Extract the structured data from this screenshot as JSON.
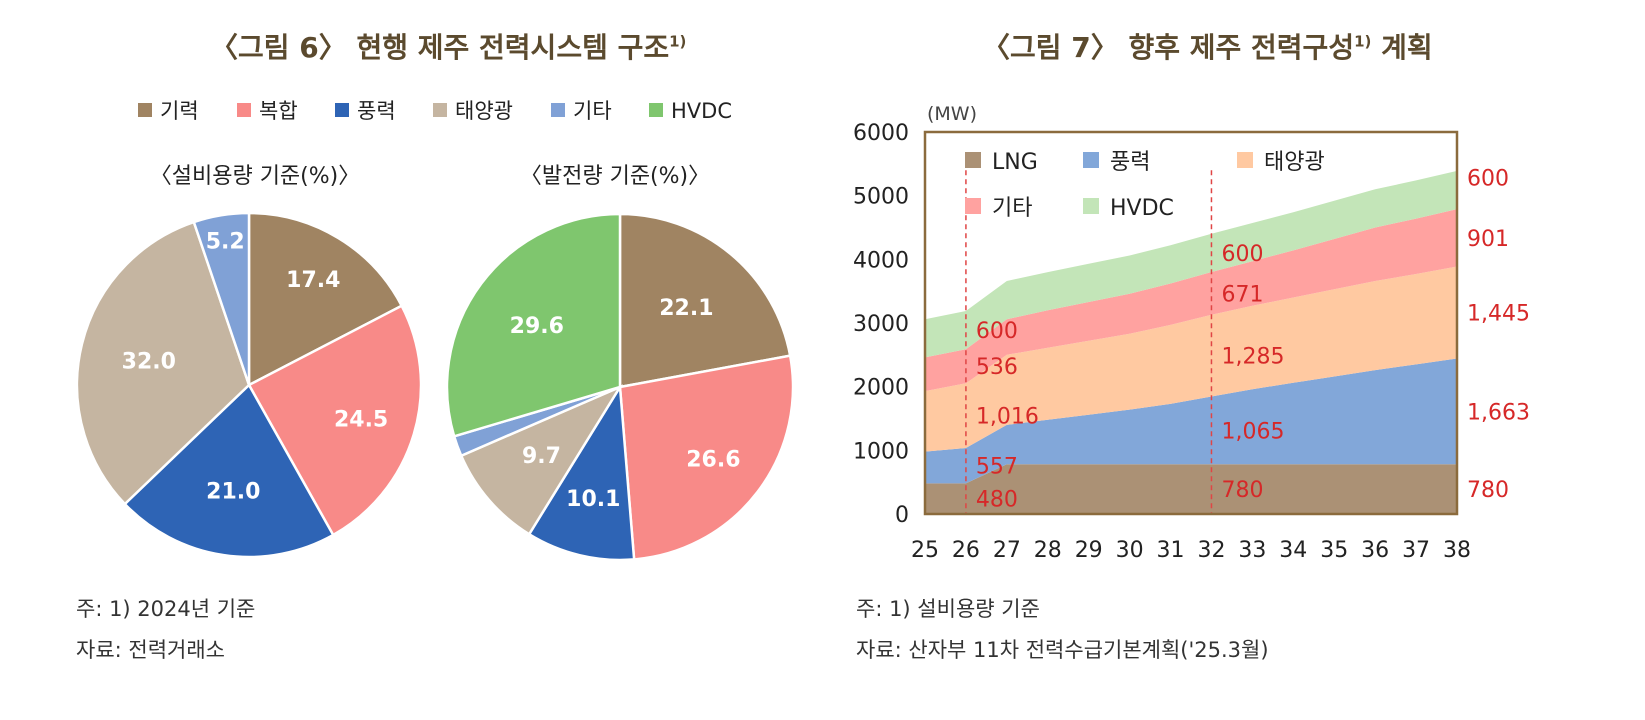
{
  "colors": {
    "gihwa": "#a08462",
    "bokhap": "#f88a88",
    "pungryeok": "#2e64b5",
    "taeyang": "#c5b5a1",
    "gita": "#80a1d6",
    "hvdc": "#7fc66e",
    "area_lng": "#ab9175",
    "area_wind": "#82a7d9",
    "area_solar": "#ffc9a1",
    "area_other": "#ffa2a0",
    "area_hvdc": "#c3e5b8",
    "frame": "#8b6b3d",
    "label_red": "#d62828",
    "title_brown": "#5b4a2e"
  },
  "left": {
    "title": "〈그림 6〉 현행 제주 전력시스템 구조",
    "title_sup": "1)",
    "legend": [
      {
        "label": "기력",
        "color": "#a08462"
      },
      {
        "label": "복합",
        "color": "#f88a88"
      },
      {
        "label": "풍력",
        "color": "#2e64b5"
      },
      {
        "label": "태양광",
        "color": "#c5b5a1"
      },
      {
        "label": "기타",
        "color": "#80a1d6"
      },
      {
        "label": "HVDC",
        "color": "#7fc66e"
      }
    ],
    "note1": "주: 1) 2024년 기준",
    "note2": "자료: 전력거래소"
  },
  "right": {
    "title": "〈그림 7〉 향후 제주 전력구성",
    "title_sup": "1)",
    "title_suffix": " 계획",
    "note1": "주: 1) 설비용량 기준",
    "note2": "자료: 산자부 11차 전력수급기본계획('25.3월)"
  },
  "chart_data": [
    {
      "type": "pie",
      "title": "〈설비용량 기준(%)〉",
      "slices": [
        {
          "label": "기력",
          "value": 17.4,
          "display": "17.4",
          "color": "#a08462"
        },
        {
          "label": "복합",
          "value": 24.5,
          "display": "24.5",
          "color": "#f88a88"
        },
        {
          "label": "풍력",
          "value": 21.0,
          "display": "21.0",
          "color": "#2e64b5"
        },
        {
          "label": "태양광",
          "value": 32.0,
          "display": "32.0",
          "color": "#c5b5a1"
        },
        {
          "label": "기타",
          "value": 5.2,
          "display": "5.2",
          "color": "#80a1d6"
        }
      ]
    },
    {
      "type": "pie",
      "title": "〈발전량 기준(%)〉",
      "slices": [
        {
          "label": "기력",
          "value": 22.1,
          "display": "22.1",
          "color": "#a08462"
        },
        {
          "label": "복합",
          "value": 26.6,
          "display": "26.6",
          "color": "#f88a88"
        },
        {
          "label": "풍력",
          "value": 10.1,
          "display": "10.1",
          "color": "#2e64b5"
        },
        {
          "label": "태양광",
          "value": 9.7,
          "display": "9.7",
          "color": "#c5b5a1"
        },
        {
          "label": "기타",
          "value": 1.9,
          "display": "",
          "color": "#80a1d6"
        },
        {
          "label": "HVDC",
          "value": 29.6,
          "display": "29.6",
          "color": "#7fc66e"
        }
      ]
    },
    {
      "type": "area",
      "stacked": true,
      "unit": "(MW)",
      "x": [
        25,
        26,
        27,
        28,
        29,
        30,
        31,
        32,
        33,
        34,
        35,
        36,
        37,
        38
      ],
      "xlim": [
        25,
        38
      ],
      "ylim": [
        0,
        6000
      ],
      "yticks": [
        0,
        1000,
        2000,
        3000,
        4000,
        5000,
        6000
      ],
      "series": [
        {
          "name": "LNG",
          "color": "#ab9175",
          "values": [
            480,
            480,
            780,
            780,
            780,
            780,
            780,
            780,
            780,
            780,
            780,
            780,
            780,
            780
          ]
        },
        {
          "name": "풍력",
          "color": "#82a7d9",
          "values": [
            500,
            557,
            620,
            700,
            780,
            860,
            950,
            1065,
            1180,
            1280,
            1380,
            1480,
            1570,
            1663
          ]
        },
        {
          "name": "태양광",
          "color": "#ffc9a1",
          "values": [
            950,
            1016,
            1100,
            1130,
            1160,
            1190,
            1240,
            1285,
            1310,
            1340,
            1370,
            1400,
            1420,
            1445
          ]
        },
        {
          "name": "기타",
          "color": "#ffa2a0",
          "values": [
            530,
            536,
            560,
            590,
            610,
            630,
            650,
            671,
            700,
            740,
            790,
            840,
            870,
            901
          ]
        },
        {
          "name": "HVDC",
          "color": "#c3e5b8",
          "values": [
            600,
            600,
            600,
            600,
            600,
            600,
            600,
            600,
            600,
            600,
            600,
            600,
            600,
            600
          ]
        }
      ],
      "annotations": [
        {
          "x": 26,
          "labels": [
            "480",
            "557",
            "1,016",
            "536",
            "600"
          ]
        },
        {
          "x": 32,
          "labels": [
            "780",
            "1,065",
            "1,285",
            "671",
            "600"
          ]
        },
        {
          "x": 38,
          "labels": [
            "780",
            "1,663",
            "1,445",
            "901",
            "600"
          ]
        }
      ]
    }
  ]
}
